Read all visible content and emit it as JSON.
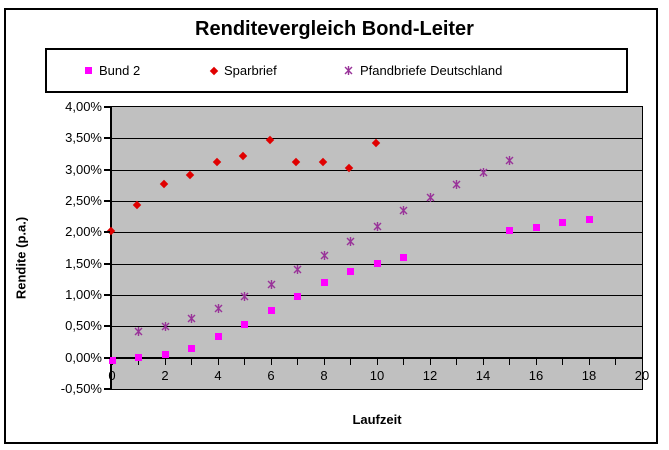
{
  "title": "Renditevergleich Bond-Leiter",
  "axes": {
    "x_title": "Laufzeit",
    "y_title": "Rendite (p.a.)",
    "x_tick_labels": [
      "0",
      "2",
      "4",
      "6",
      "8",
      "10",
      "12",
      "14",
      "16",
      "18",
      "20"
    ],
    "y_tick_labels": [
      "4,00%",
      "3,50%",
      "3,00%",
      "2,50%",
      "2,00%",
      "1,50%",
      "1,00%",
      "0,50%",
      "0,00%",
      "-0,50%"
    ]
  },
  "chart_data": {
    "type": "scatter",
    "title": "Renditevergleich Bond-Leiter",
    "xlabel": "Laufzeit",
    "ylabel": "Rendite (p.a.)",
    "xlim": [
      0,
      20
    ],
    "ylim": [
      -0.5,
      4.0
    ],
    "x_tick_step_labels": 2,
    "x_tick_step_minor": 1,
    "y_tick_step": 0.5,
    "grid": true,
    "plot_background": "#C0C0C0",
    "gridline_color": "#000000",
    "legend_position": "top",
    "y_unit": "percent",
    "series": [
      {
        "name": "Bund 2",
        "marker": "square",
        "color": "#FF00FF",
        "points": [
          [
            0,
            -0.05
          ],
          [
            1,
            0.0
          ],
          [
            2,
            0.05
          ],
          [
            3,
            0.15
          ],
          [
            4,
            0.33
          ],
          [
            5,
            0.53
          ],
          [
            6,
            0.76
          ],
          [
            7,
            0.97
          ],
          [
            8,
            1.2
          ],
          [
            9,
            1.38
          ],
          [
            10,
            1.5
          ],
          [
            11,
            1.6
          ],
          [
            15,
            2.03
          ],
          [
            16,
            2.07
          ],
          [
            17,
            2.15
          ],
          [
            18,
            2.2
          ]
        ]
      },
      {
        "name": "Sparbrief",
        "marker": "diamond",
        "color": "#E00000",
        "points": [
          [
            0,
            2.0
          ],
          [
            1,
            2.41
          ],
          [
            2,
            2.75
          ],
          [
            3,
            2.89
          ],
          [
            4,
            3.1
          ],
          [
            5,
            3.2
          ],
          [
            6,
            3.45
          ],
          [
            7,
            3.1
          ],
          [
            8,
            3.1
          ],
          [
            9,
            3.0
          ],
          [
            10,
            3.4
          ]
        ]
      },
      {
        "name": "Pfandbriefe Deutschland",
        "marker": "asterisk",
        "color": "#993399",
        "points": [
          [
            1,
            0.42
          ],
          [
            2,
            0.5
          ],
          [
            3,
            0.63
          ],
          [
            4,
            0.78
          ],
          [
            5,
            0.97
          ],
          [
            6,
            1.17
          ],
          [
            7,
            1.4
          ],
          [
            8,
            1.63
          ],
          [
            9,
            1.86
          ],
          [
            10,
            2.1
          ],
          [
            11,
            2.35
          ],
          [
            12,
            2.55
          ],
          [
            13,
            2.77
          ],
          [
            14,
            2.95
          ],
          [
            15,
            3.15
          ]
        ]
      }
    ]
  }
}
